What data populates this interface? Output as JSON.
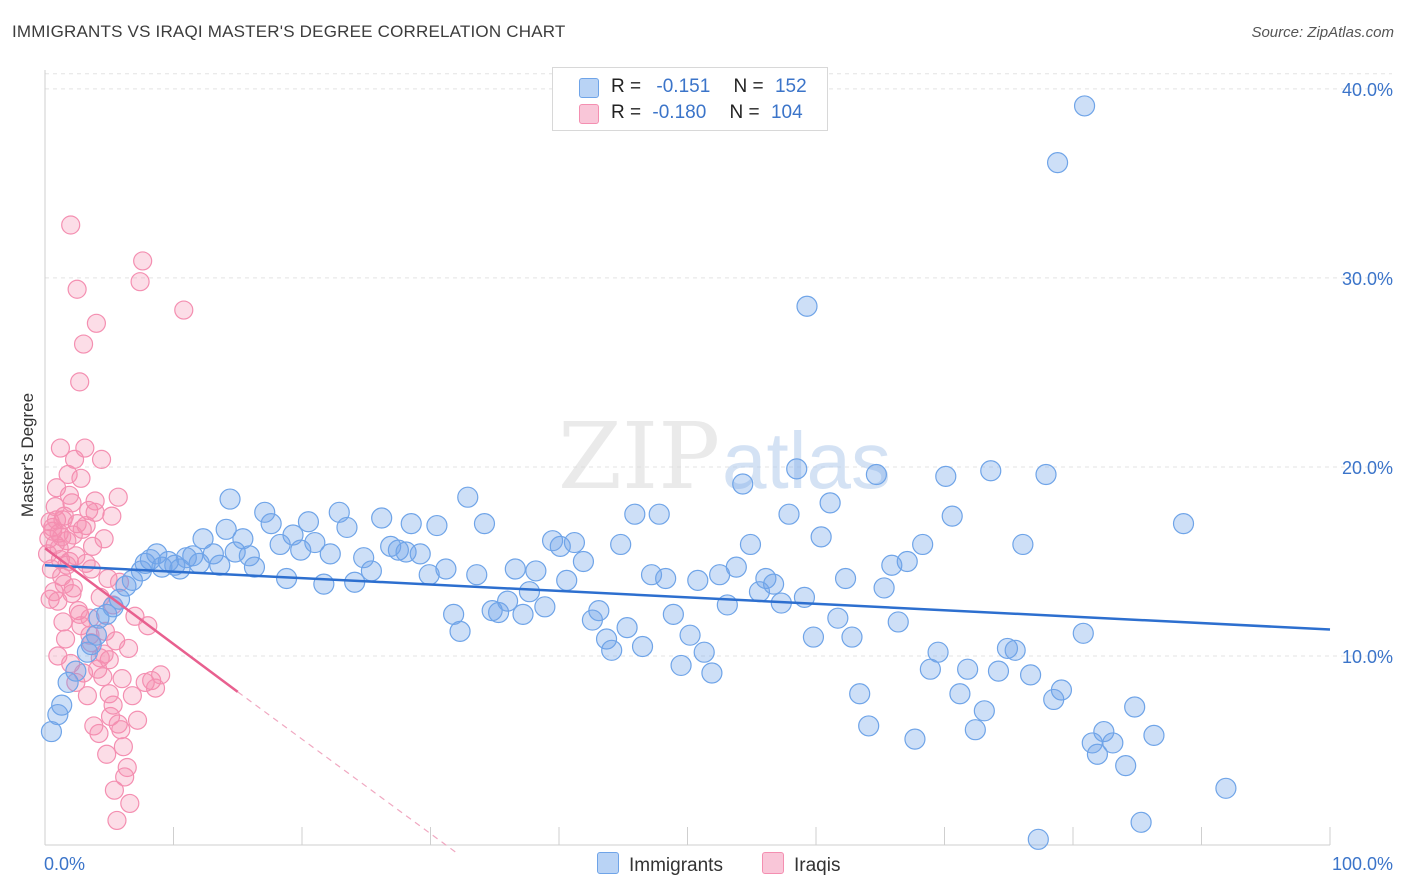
{
  "title": "IMMIGRANTS VS IRAQI MASTER'S DEGREE CORRELATION CHART",
  "source": "Source: ZipAtlas.com",
  "watermark": {
    "zip": "ZIP",
    "atlas": "atlas"
  },
  "legend": {
    "series": [
      {
        "r_label": "R =",
        "r_value": "-0.151",
        "n_label": "N =",
        "n_value": "152"
      },
      {
        "r_label": "R =",
        "r_value": "-0.180",
        "n_label": "N =",
        "n_value": "104"
      }
    ]
  },
  "bottom_legend": {
    "immigrants": "Immigrants",
    "iraqis": "Iraqis"
  },
  "colors": {
    "blue": "#6fa4e8",
    "blue_line": "#2d6fcf",
    "pink": "#f48fb1",
    "pink_line": "#e8608f",
    "tick_label": "#3b74c9"
  },
  "chart_data": {
    "type": "scatter",
    "title": "IMMIGRANTS VS IRAQI MASTER'S DEGREE CORRELATION CHART",
    "xlabel": "",
    "ylabel": "Master's Degree",
    "xlim": [
      0,
      100
    ],
    "ylim": [
      0,
      41
    ],
    "x_tick_labels": [
      "0.0%",
      "100.0%"
    ],
    "y_ticks": [
      10,
      20,
      30,
      40
    ],
    "y_tick_labels": [
      "10.0%",
      "20.0%",
      "30.0%",
      "40.0%"
    ],
    "grid": true,
    "series": [
      {
        "name": "Immigrants",
        "color": "#6fa4e8",
        "trend": {
          "x": [
            0,
            100
          ],
          "y": [
            14.8,
            11.4
          ]
        },
        "points": [
          [
            0.5,
            6.0
          ],
          [
            1.0,
            6.9
          ],
          [
            1.3,
            7.4
          ],
          [
            1.8,
            8.6
          ],
          [
            2.4,
            9.2
          ],
          [
            3.3,
            10.2
          ],
          [
            3.6,
            10.6
          ],
          [
            4.0,
            11.1
          ],
          [
            4.2,
            12.0
          ],
          [
            4.8,
            12.2
          ],
          [
            5.3,
            12.6
          ],
          [
            5.8,
            13.0
          ],
          [
            6.3,
            13.7
          ],
          [
            6.8,
            14.0
          ],
          [
            7.5,
            14.5
          ],
          [
            7.8,
            14.9
          ],
          [
            8.2,
            15.1
          ],
          [
            8.7,
            15.4
          ],
          [
            9.1,
            14.7
          ],
          [
            9.6,
            15.0
          ],
          [
            10.1,
            14.8
          ],
          [
            10.5,
            14.6
          ],
          [
            11.0,
            15.2
          ],
          [
            11.5,
            15.3
          ],
          [
            12.0,
            14.9
          ],
          [
            12.3,
            16.2
          ],
          [
            13.1,
            15.4
          ],
          [
            13.6,
            14.8
          ],
          [
            14.1,
            16.7
          ],
          [
            14.4,
            18.3
          ],
          [
            14.8,
            15.5
          ],
          [
            15.4,
            16.2
          ],
          [
            15.9,
            15.3
          ],
          [
            16.3,
            14.7
          ],
          [
            17.1,
            17.6
          ],
          [
            17.6,
            17.0
          ],
          [
            18.3,
            15.9
          ],
          [
            18.8,
            14.1
          ],
          [
            19.3,
            16.4
          ],
          [
            19.9,
            15.6
          ],
          [
            20.5,
            17.1
          ],
          [
            21.0,
            16.0
          ],
          [
            21.7,
            13.8
          ],
          [
            22.2,
            15.4
          ],
          [
            22.9,
            17.6
          ],
          [
            23.5,
            16.8
          ],
          [
            24.1,
            13.9
          ],
          [
            24.8,
            15.2
          ],
          [
            25.4,
            14.5
          ],
          [
            26.2,
            17.3
          ],
          [
            26.9,
            15.8
          ],
          [
            27.5,
            15.6
          ],
          [
            28.1,
            15.5
          ],
          [
            28.5,
            17.0
          ],
          [
            29.2,
            15.4
          ],
          [
            29.9,
            14.3
          ],
          [
            30.5,
            16.9
          ],
          [
            31.2,
            14.6
          ],
          [
            31.8,
            12.2
          ],
          [
            32.3,
            11.3
          ],
          [
            32.9,
            18.4
          ],
          [
            33.6,
            14.3
          ],
          [
            34.2,
            17.0
          ],
          [
            34.8,
            12.4
          ],
          [
            35.3,
            12.3
          ],
          [
            36.0,
            12.9
          ],
          [
            36.6,
            14.6
          ],
          [
            37.2,
            12.2
          ],
          [
            37.7,
            13.4
          ],
          [
            38.2,
            14.5
          ],
          [
            38.9,
            12.6
          ],
          [
            39.5,
            16.1
          ],
          [
            40.1,
            15.8
          ],
          [
            40.6,
            14.0
          ],
          [
            41.2,
            16.0
          ],
          [
            41.9,
            15.0
          ],
          [
            42.6,
            11.9
          ],
          [
            43.1,
            12.4
          ],
          [
            43.7,
            10.9
          ],
          [
            44.1,
            10.3
          ],
          [
            44.8,
            15.9
          ],
          [
            45.3,
            11.5
          ],
          [
            45.9,
            17.5
          ],
          [
            46.5,
            10.5
          ],
          [
            47.2,
            14.3
          ],
          [
            47.8,
            17.5
          ],
          [
            48.3,
            14.1
          ],
          [
            48.9,
            12.2
          ],
          [
            49.5,
            9.5
          ],
          [
            50.2,
            11.1
          ],
          [
            50.8,
            14.0
          ],
          [
            51.3,
            10.2
          ],
          [
            51.9,
            9.1
          ],
          [
            52.5,
            14.3
          ],
          [
            53.1,
            12.7
          ],
          [
            53.8,
            14.7
          ],
          [
            54.3,
            19.1
          ],
          [
            54.9,
            15.9
          ],
          [
            55.6,
            13.4
          ],
          [
            56.1,
            14.1
          ],
          [
            56.7,
            13.8
          ],
          [
            57.3,
            12.8
          ],
          [
            57.9,
            17.5
          ],
          [
            58.5,
            19.9
          ],
          [
            59.1,
            13.1
          ],
          [
            59.8,
            11.0
          ],
          [
            60.4,
            16.3
          ],
          [
            61.1,
            18.1
          ],
          [
            61.7,
            12.0
          ],
          [
            62.3,
            14.1
          ],
          [
            62.8,
            11.0
          ],
          [
            63.4,
            8.0
          ],
          [
            64.1,
            6.3
          ],
          [
            64.7,
            19.6
          ],
          [
            65.3,
            13.6
          ],
          [
            65.9,
            14.8
          ],
          [
            66.4,
            11.8
          ],
          [
            67.1,
            15.0
          ],
          [
            67.7,
            5.6
          ],
          [
            68.3,
            15.9
          ],
          [
            68.9,
            9.3
          ],
          [
            69.5,
            10.2
          ],
          [
            70.1,
            19.5
          ],
          [
            70.6,
            17.4
          ],
          [
            71.2,
            8.0
          ],
          [
            71.8,
            9.3
          ],
          [
            72.4,
            6.1
          ],
          [
            73.1,
            7.1
          ],
          [
            73.6,
            19.8
          ],
          [
            74.2,
            9.2
          ],
          [
            74.9,
            10.4
          ],
          [
            75.5,
            10.3
          ],
          [
            76.1,
            15.9
          ],
          [
            76.7,
            9.0
          ],
          [
            77.3,
            0.3
          ],
          [
            77.9,
            19.6
          ],
          [
            78.5,
            7.7
          ],
          [
            79.1,
            8.2
          ],
          [
            80.8,
            11.2
          ],
          [
            81.5,
            5.4
          ],
          [
            81.9,
            4.8
          ],
          [
            82.4,
            6.0
          ],
          [
            83.1,
            5.4
          ],
          [
            84.1,
            4.2
          ],
          [
            84.8,
            7.3
          ],
          [
            85.3,
            1.2
          ],
          [
            86.3,
            5.8
          ],
          [
            59.3,
            28.5
          ],
          [
            78.8,
            36.1
          ],
          [
            80.9,
            39.1
          ],
          [
            88.6,
            17.0
          ],
          [
            91.9,
            3.0
          ]
        ]
      },
      {
        "name": "Iraqis",
        "color": "#f48fb1",
        "trend": {
          "x": [
            0,
            15
          ],
          "y": [
            15.7,
            8.1
          ]
        },
        "trend_extension": {
          "x": [
            15,
            32
          ],
          "y": [
            8.1,
            -0.4
          ]
        },
        "points": [
          [
            0.2,
            15.4
          ],
          [
            0.3,
            16.2
          ],
          [
            0.4,
            17.1
          ],
          [
            0.5,
            14.6
          ],
          [
            0.6,
            16.8
          ],
          [
            0.7,
            13.4
          ],
          [
            0.8,
            15.9
          ],
          [
            0.9,
            18.9
          ],
          [
            1.0,
            12.9
          ],
          [
            1.1,
            16.5
          ],
          [
            1.2,
            15.1
          ],
          [
            1.3,
            14.2
          ],
          [
            1.4,
            11.8
          ],
          [
            1.5,
            17.4
          ],
          [
            1.6,
            10.9
          ],
          [
            1.7,
            16.1
          ],
          [
            1.8,
            19.6
          ],
          [
            1.9,
            15.0
          ],
          [
            2.0,
            9.6
          ],
          [
            2.1,
            18.1
          ],
          [
            2.2,
            13.6
          ],
          [
            2.3,
            20.4
          ],
          [
            2.4,
            8.6
          ],
          [
            2.5,
            17.0
          ],
          [
            2.6,
            12.4
          ],
          [
            2.7,
            24.5
          ],
          [
            2.8,
            11.6
          ],
          [
            2.9,
            16.7
          ],
          [
            3.0,
            9.1
          ],
          [
            3.1,
            21.0
          ],
          [
            3.2,
            14.9
          ],
          [
            3.3,
            7.9
          ],
          [
            3.4,
            17.7
          ],
          [
            3.5,
            12.0
          ],
          [
            3.6,
            10.7
          ],
          [
            3.7,
            15.8
          ],
          [
            3.8,
            6.3
          ],
          [
            3.9,
            18.2
          ],
          [
            4.0,
            27.6
          ],
          [
            4.1,
            9.3
          ],
          [
            4.2,
            5.9
          ],
          [
            4.3,
            13.1
          ],
          [
            4.4,
            20.4
          ],
          [
            4.5,
            8.9
          ],
          [
            4.6,
            16.2
          ],
          [
            4.7,
            11.3
          ],
          [
            4.8,
            4.8
          ],
          [
            4.9,
            14.1
          ],
          [
            5.0,
            9.8
          ],
          [
            5.1,
            6.8
          ],
          [
            5.2,
            17.4
          ],
          [
            5.3,
            12.7
          ],
          [
            5.4,
            2.9
          ],
          [
            5.5,
            10.8
          ],
          [
            5.6,
            1.3
          ],
          [
            5.7,
            18.4
          ],
          [
            5.8,
            13.9
          ],
          [
            5.9,
            6.1
          ],
          [
            6.0,
            8.8
          ],
          [
            6.2,
            3.6
          ],
          [
            6.4,
            4.1
          ],
          [
            6.6,
            2.2
          ],
          [
            6.8,
            7.9
          ],
          [
            7.0,
            12.1
          ],
          [
            7.2,
            6.6
          ],
          [
            7.4,
            29.8
          ],
          [
            7.6,
            30.9
          ],
          [
            7.8,
            8.6
          ],
          [
            8.0,
            11.6
          ],
          [
            8.3,
            8.7
          ],
          [
            8.6,
            8.3
          ],
          [
            9.0,
            9.0
          ],
          [
            10.8,
            28.3
          ],
          [
            1.0,
            10.0
          ],
          [
            1.2,
            21.0
          ],
          [
            2.0,
            32.8
          ],
          [
            2.5,
            29.4
          ],
          [
            3.0,
            26.5
          ],
          [
            1.5,
            13.8
          ],
          [
            2.2,
            16.4
          ],
          [
            0.8,
            17.9
          ],
          [
            1.9,
            18.5
          ],
          [
            2.8,
            19.4
          ],
          [
            3.6,
            14.6
          ],
          [
            4.6,
            10.1
          ],
          [
            5.3,
            7.4
          ],
          [
            6.1,
            5.2
          ],
          [
            0.4,
            13.0
          ],
          [
            0.6,
            16.6
          ],
          [
            1.1,
            15.7
          ],
          [
            1.4,
            17.2
          ],
          [
            1.7,
            14.8
          ],
          [
            2.4,
            15.3
          ],
          [
            3.2,
            16.9
          ],
          [
            3.9,
            17.6
          ],
          [
            0.9,
            17.2
          ],
          [
            1.3,
            16.3
          ],
          [
            2.1,
            13.3
          ],
          [
            2.7,
            12.2
          ],
          [
            3.5,
            11.1
          ],
          [
            4.3,
            9.9
          ],
          [
            5.0,
            8.0
          ],
          [
            5.7,
            6.4
          ],
          [
            6.5,
            10.4
          ]
        ]
      }
    ]
  }
}
